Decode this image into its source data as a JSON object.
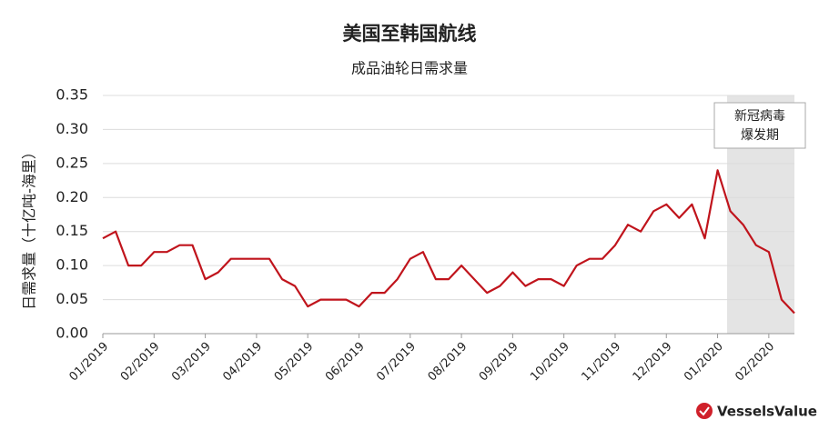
{
  "chart_data": {
    "type": "line",
    "title": "美国至韩国航线",
    "subtitle": "成品油轮日需求量",
    "y_label": "日需求量（十亿吨-海里）",
    "annotation": [
      "新冠病毒",
      "爆发期"
    ],
    "source": "VesselsValue",
    "categories": [
      "01/2019",
      null,
      null,
      null,
      "02/2019",
      null,
      null,
      null,
      "03/2019",
      null,
      null,
      null,
      "04/2019",
      null,
      null,
      null,
      "05/2019",
      null,
      null,
      null,
      "06/2019",
      null,
      null,
      null,
      "07/2019",
      null,
      null,
      null,
      "08/2019",
      null,
      null,
      null,
      "09/2019",
      null,
      null,
      null,
      "10/2019",
      null,
      null,
      null,
      "11/2019",
      null,
      null,
      null,
      "12/2019",
      null,
      null,
      null,
      "01/2020",
      null,
      null,
      null,
      "02/2020",
      null,
      null
    ],
    "series": [
      {
        "name": "日需求量",
        "color": "#c0141c",
        "values": [
          0.14,
          0.15,
          0.1,
          0.1,
          0.12,
          0.12,
          0.13,
          0.13,
          0.08,
          0.09,
          0.11,
          0.11,
          0.11,
          0.11,
          0.08,
          0.07,
          0.04,
          0.05,
          0.05,
          0.05,
          0.04,
          0.06,
          0.06,
          0.08,
          0.11,
          0.12,
          0.08,
          0.08,
          0.1,
          0.08,
          0.06,
          0.07,
          0.09,
          0.07,
          0.08,
          0.08,
          0.07,
          0.1,
          0.11,
          0.11,
          0.13,
          0.16,
          0.15,
          0.18,
          0.19,
          0.17,
          0.19,
          0.14,
          0.24,
          0.18,
          0.16,
          0.13,
          0.12,
          0.05,
          0.03
        ]
      }
    ],
    "ylim": [
      0,
      0.35
    ],
    "yticks": [
      {
        "value": 0,
        "label": "0.00"
      },
      0.05,
      {
        "value": 0.1,
        "label": "0.10"
      },
      0.15,
      {
        "value": 0.2,
        "label": "0.20"
      },
      0.25,
      {
        "value": 0.3,
        "label": "0.30"
      },
      0.35
    ],
    "grid": true
  }
}
